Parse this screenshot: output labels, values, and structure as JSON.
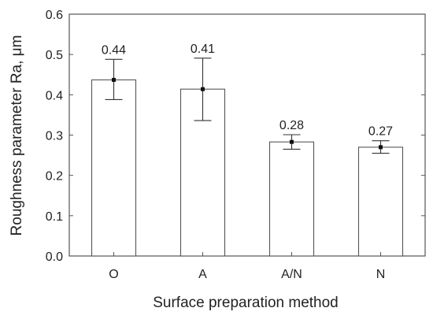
{
  "chart_data": {
    "type": "bar",
    "title": "",
    "xlabel": "Surface preparation method",
    "ylabel": "Roughness parameter Ra, μm",
    "categories": [
      "O",
      "A",
      "A/N",
      "N"
    ],
    "values": [
      0.437,
      0.414,
      0.283,
      0.27
    ],
    "data_labels": [
      "0.44",
      "0.41",
      "0.28",
      "0.27"
    ],
    "error_upper": [
      0.488,
      0.491,
      0.301,
      0.286
    ],
    "error_lower": [
      0.388,
      0.336,
      0.265,
      0.255
    ],
    "ylim": [
      0.0,
      0.6
    ],
    "yticks": [
      "0.0",
      "0.1",
      "0.2",
      "0.3",
      "0.4",
      "0.5",
      "0.6"
    ],
    "grid": false,
    "bar_color": "#ffffff",
    "edge_color": "#555555"
  }
}
